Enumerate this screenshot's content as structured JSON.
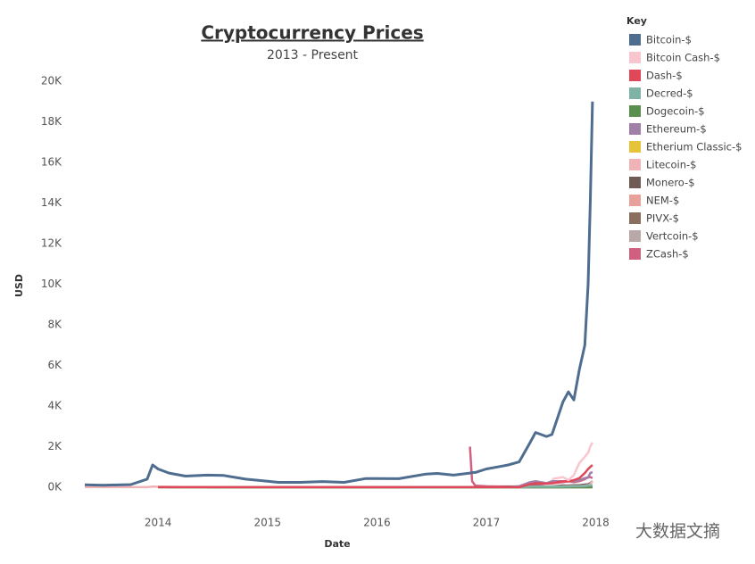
{
  "chart_data": {
    "type": "line",
    "title": "Cryptocurrency Prices",
    "subtitle": "2013 - Present",
    "x_label": "Date",
    "y_label": "USD",
    "legend_title": "Key",
    "legend_position": "right",
    "watermark": "大数据文摘",
    "x": [
      2013.33,
      2013.5,
      2013.75,
      2013.9,
      2013.95,
      2014.0,
      2014.1,
      2014.25,
      2014.45,
      2014.6,
      2014.8,
      2015.0,
      2015.1,
      2015.3,
      2015.5,
      2015.7,
      2015.9,
      2016.0,
      2016.2,
      2016.45,
      2016.55,
      2016.7,
      2016.85,
      2016.87,
      2016.9,
      2017.0,
      2017.1,
      2017.2,
      2017.3,
      2017.4,
      2017.45,
      2017.55,
      2017.6,
      2017.7,
      2017.75,
      2017.8,
      2017.85,
      2017.9,
      2017.93,
      2017.95,
      2017.97
    ],
    "xlim": [
      2013.33,
      2018.02
    ],
    "xticks": [
      2014,
      2015,
      2016,
      2017,
      2018
    ],
    "ylim": [
      0,
      20000
    ],
    "yticks": [
      {
        "value": 0,
        "label": "0K"
      },
      {
        "value": 2000,
        "label": "2K"
      },
      {
        "value": 4000,
        "label": "4K"
      },
      {
        "value": 6000,
        "label": "6K"
      },
      {
        "value": 8000,
        "label": "8K"
      },
      {
        "value": 10000,
        "label": "10K"
      },
      {
        "value": 12000,
        "label": "12K"
      },
      {
        "value": 14000,
        "label": "14K"
      },
      {
        "value": 16000,
        "label": "16K"
      },
      {
        "value": 18000,
        "label": "18K"
      },
      {
        "value": 20000,
        "label": "20K"
      }
    ],
    "series": [
      {
        "name": "Bitcoin-$",
        "color": "#4e6d8f",
        "values": [
          120,
          100,
          130,
          400,
          1100,
          900,
          700,
          550,
          600,
          580,
          400,
          300,
          240,
          240,
          280,
          240,
          430,
          430,
          420,
          650,
          680,
          600,
          700,
          720,
          730,
          900,
          1000,
          1100,
          1250,
          2200,
          2700,
          2500,
          2600,
          4200,
          4700,
          4300,
          5800,
          7000,
          10000,
          14000,
          19000
        ]
      },
      {
        "name": "Bitcoin Cash-$",
        "color": "#f9c6cf",
        "values": [
          null,
          null,
          null,
          null,
          null,
          null,
          null,
          null,
          null,
          null,
          null,
          null,
          null,
          null,
          null,
          null,
          null,
          null,
          null,
          null,
          null,
          null,
          null,
          null,
          null,
          null,
          null,
          null,
          null,
          null,
          null,
          null,
          400,
          500,
          350,
          600,
          1200,
          1500,
          1700,
          2000,
          2200
        ]
      },
      {
        "name": "Dash-$",
        "color": "#e0485a",
        "values": [
          null,
          null,
          null,
          null,
          null,
          5,
          5,
          5,
          5,
          5,
          5,
          5,
          5,
          5,
          5,
          5,
          5,
          5,
          5,
          5,
          5,
          5,
          5,
          5,
          5,
          5,
          5,
          5,
          5,
          150,
          200,
          180,
          200,
          300,
          280,
          350,
          450,
          700,
          900,
          1000,
          1100
        ]
      },
      {
        "name": "Decred-$",
        "color": "#7fb3a6",
        "values": [
          null,
          null,
          null,
          null,
          null,
          null,
          null,
          null,
          null,
          null,
          null,
          null,
          null,
          null,
          null,
          null,
          null,
          null,
          1,
          1,
          1,
          1,
          1,
          1,
          1,
          1,
          1,
          1,
          1,
          20,
          25,
          30,
          25,
          30,
          40,
          50,
          50,
          60,
          80,
          100,
          100
        ]
      },
      {
        "name": "Dogecoin-$",
        "color": "#5b8f4d",
        "values": [
          null,
          null,
          null,
          null,
          null,
          0,
          0,
          0,
          0,
          0,
          0,
          0,
          0,
          0,
          0,
          0,
          0,
          0,
          0,
          0,
          0,
          0,
          0,
          0,
          0,
          0,
          0,
          0,
          0,
          0,
          0,
          0,
          0,
          0,
          0,
          0,
          0,
          0,
          0,
          0,
          0
        ]
      },
      {
        "name": "Ethereum-$",
        "color": "#a080a8",
        "values": [
          null,
          null,
          null,
          null,
          null,
          null,
          null,
          null,
          null,
          null,
          null,
          null,
          null,
          null,
          null,
          1,
          1,
          1,
          2,
          10,
          12,
          12,
          10,
          10,
          10,
          8,
          11,
          15,
          50,
          250,
          300,
          200,
          300,
          300,
          300,
          300,
          350,
          450,
          470,
          700,
          750
        ]
      },
      {
        "name": "Etherium Classic-$",
        "color": "#e5c43a",
        "values": [
          null,
          null,
          null,
          null,
          null,
          null,
          null,
          null,
          null,
          null,
          null,
          null,
          null,
          null,
          null,
          null,
          null,
          null,
          null,
          null,
          1,
          1,
          1,
          1,
          1,
          1,
          1,
          2,
          15,
          18,
          20,
          15,
          12,
          12,
          10,
          10,
          20,
          20,
          25,
          30,
          30
        ]
      },
      {
        "name": "Litecoin-$",
        "color": "#f0b4b6",
        "values": [
          3,
          3,
          3,
          4,
          30,
          25,
          20,
          12,
          9,
          8,
          5,
          3,
          2,
          2,
          3,
          3,
          3,
          3,
          3,
          4,
          4,
          4,
          4,
          4,
          4,
          4,
          4,
          4,
          10,
          25,
          30,
          45,
          40,
          45,
          55,
          60,
          55,
          80,
          100,
          150,
          300
        ]
      },
      {
        "name": "Monero-$",
        "color": "#6f5a55",
        "values": [
          null,
          null,
          null,
          null,
          null,
          null,
          null,
          null,
          1,
          1,
          1,
          1,
          1,
          1,
          1,
          1,
          1,
          1,
          1,
          2,
          5,
          10,
          10,
          12,
          12,
          13,
          14,
          20,
          40,
          50,
          50,
          45,
          45,
          90,
          90,
          95,
          100,
          130,
          150,
          200,
          300
        ]
      },
      {
        "name": "NEM-$",
        "color": "#e8a09a",
        "values": [
          null,
          null,
          null,
          null,
          null,
          null,
          null,
          null,
          null,
          null,
          null,
          null,
          null,
          0,
          0,
          0,
          0,
          0,
          0,
          0,
          0,
          0,
          0,
          0,
          0,
          0,
          0,
          0,
          0,
          0,
          0,
          0,
          0,
          0,
          0,
          0,
          0,
          0.2,
          0.3,
          0.5,
          1
        ]
      },
      {
        "name": "PIVX-$",
        "color": "#8a6e5e",
        "values": [
          null,
          null,
          null,
          null,
          null,
          null,
          null,
          null,
          null,
          null,
          null,
          null,
          null,
          null,
          null,
          null,
          null,
          null,
          0,
          0,
          0,
          0,
          0,
          0,
          0,
          0,
          0,
          0,
          0,
          0,
          0,
          2,
          2,
          3,
          3,
          4,
          5,
          5,
          6,
          8,
          10
        ]
      },
      {
        "name": "Vertcoin-$",
        "color": "#b8a9a8",
        "values": [
          null,
          null,
          null,
          null,
          null,
          null,
          0.5,
          0.5,
          0.5,
          0.5,
          0.5,
          0.5,
          0.5,
          0.5,
          0.5,
          0.5,
          0.5,
          0.5,
          0.5,
          0.5,
          0.5,
          0.5,
          0.5,
          0.5,
          0.5,
          0.5,
          0.5,
          0.5,
          0.5,
          0.5,
          0.5,
          1,
          1,
          2,
          2,
          3,
          4,
          4,
          5,
          6,
          8
        ]
      },
      {
        "name": "ZCash-$",
        "color": "#d0607f",
        "values": [
          null,
          null,
          null,
          null,
          null,
          null,
          null,
          null,
          null,
          null,
          null,
          null,
          null,
          null,
          null,
          null,
          null,
          null,
          null,
          null,
          null,
          null,
          2000,
          300,
          80,
          50,
          40,
          40,
          40,
          50,
          100,
          200,
          200,
          250,
          300,
          250,
          300,
          400,
          500,
          500,
          450
        ]
      }
    ]
  }
}
